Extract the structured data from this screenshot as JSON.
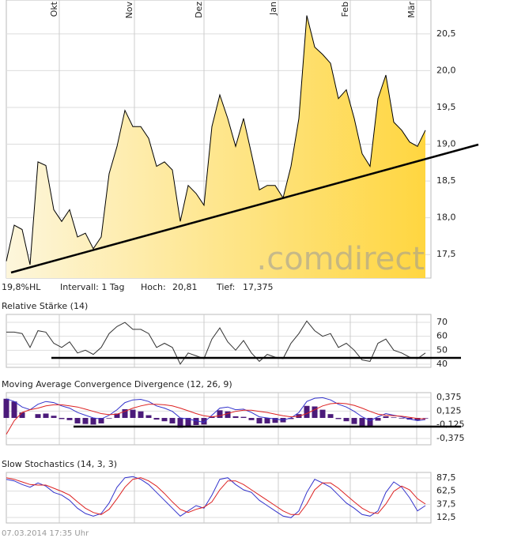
{
  "chart_data": [
    {
      "type": "area",
      "xlim": [
        0,
        53.7
      ],
      "ylim": [
        17.18,
        20.96
      ],
      "x": [
        0,
        1,
        2,
        3,
        4,
        5,
        6,
        7,
        8,
        9,
        10,
        11,
        12,
        13,
        14,
        15,
        16,
        17,
        18,
        19,
        20,
        21,
        22,
        23,
        24,
        25,
        26,
        27,
        28,
        29,
        30,
        31,
        32,
        33,
        34,
        35,
        36,
        37,
        38,
        39,
        40,
        41,
        42,
        43,
        44,
        45,
        46,
        47,
        48,
        49,
        50,
        51,
        52,
        53
      ],
      "xticks": [
        {
          "value": 6.7,
          "label": "Okt"
        },
        {
          "value": 16.2,
          "label": "Nov"
        },
        {
          "value": 25,
          "label": "Dez"
        },
        {
          "value": 34.4,
          "label": "Jan"
        },
        {
          "value": 43.5,
          "label": "Feb"
        },
        {
          "value": 51.9,
          "label": "Mär"
        }
      ],
      "yticks": [
        {
          "value": 17.5,
          "label": "17,5"
        },
        {
          "value": 18,
          "label": "18,0"
        },
        {
          "value": 18.5,
          "label": "18,5"
        },
        {
          "value": 19,
          "label": "19,0"
        },
        {
          "value": 19.5,
          "label": "19,5"
        },
        {
          "value": 20,
          "label": "20,0"
        },
        {
          "value": 20.5,
          "label": "20,5"
        }
      ],
      "grid": true,
      "watermark": ".comdirect",
      "series": [
        {
          "color": "#000000",
          "fill_from": "#fdf6dc",
          "fill_to": "#ffd640",
          "values": [
            17.41,
            17.9,
            17.84,
            17.36,
            18.76,
            18.71,
            18.11,
            17.95,
            18.11,
            17.74,
            17.79,
            17.58,
            17.74,
            18.6,
            18.97,
            19.46,
            19.24,
            19.24,
            19.08,
            18.7,
            18.76,
            18.65,
            17.95,
            18.44,
            18.33,
            18.17,
            19.24,
            19.67,
            19.35,
            18.97,
            19.35,
            18.87,
            18.38,
            18.44,
            18.44,
            18.27,
            18.7,
            19.35,
            20.75,
            20.32,
            20.22,
            20.1,
            19.62,
            19.74,
            19.35,
            18.87,
            18.7,
            19.62,
            19.94,
            19.3,
            19.19,
            19.03,
            18.97,
            19.19
          ]
        }
      ]
    },
    {
      "type": "line",
      "title": "Relative Stärke (14)",
      "xlim": [
        0,
        53.7
      ],
      "ylim": [
        37.7,
        75.7
      ],
      "yticks": [
        40,
        50,
        60,
        70
      ],
      "grid": true,
      "x": [
        0,
        1,
        2,
        3,
        4,
        5,
        6,
        7,
        8,
        9,
        10,
        11,
        12,
        13,
        14,
        15,
        16,
        17,
        18,
        19,
        20,
        21,
        22,
        23,
        24,
        25,
        26,
        27,
        28,
        29,
        30,
        31,
        32,
        33,
        34,
        35,
        36,
        37,
        38,
        39,
        40,
        41,
        42,
        43,
        44,
        45,
        46,
        47,
        48,
        49,
        50,
        51,
        52,
        53
      ],
      "series": [
        {
          "color": "#333333",
          "values": [
            63,
            63,
            62,
            52,
            64,
            63,
            55,
            52,
            56,
            48,
            50,
            47,
            52,
            62,
            67,
            70,
            65,
            65,
            62,
            52,
            55,
            52,
            40,
            48,
            46,
            44,
            58,
            66,
            56,
            50,
            57,
            48,
            42,
            47,
            45,
            44,
            55,
            62,
            71,
            64,
            60,
            62,
            52,
            55,
            50,
            43,
            42,
            55,
            58,
            50,
            48,
            45,
            44,
            48
          ]
        }
      ]
    },
    {
      "type": "combo",
      "title": "Moving Average Convergence Divergence (12, 26, 9)",
      "xlim": [
        0,
        53.7
      ],
      "ylim": [
        -0.49,
        0.462
      ],
      "yticks": [
        {
          "value": -0.375,
          "label": "-0,375"
        },
        {
          "value": -0.125,
          "label": "-0,125"
        },
        {
          "value": 0.125,
          "label": "0,125"
        },
        {
          "value": 0.375,
          "label": "0,375"
        }
      ],
      "grid": true,
      "x": [
        0,
        1,
        2,
        3,
        4,
        5,
        6,
        7,
        8,
        9,
        10,
        11,
        12,
        13,
        14,
        15,
        16,
        17,
        18,
        19,
        20,
        21,
        22,
        23,
        24,
        25,
        26,
        27,
        28,
        29,
        30,
        31,
        32,
        33,
        34,
        35,
        36,
        37,
        38,
        39,
        40,
        41,
        42,
        43,
        44,
        45,
        46,
        47,
        48,
        49,
        50,
        51,
        52,
        53
      ],
      "series": [
        {
          "type": "bar",
          "color": "#4b1a7a",
          "values": [
            0.35,
            0.3,
            0.1,
            0,
            0.07,
            0.08,
            0.04,
            -0.02,
            -0.04,
            -0.1,
            -0.11,
            -0.12,
            -0.1,
            -0.01,
            0.08,
            0.16,
            0.15,
            0.12,
            0.05,
            -0.03,
            -0.06,
            -0.1,
            -0.18,
            -0.15,
            -0.13,
            -0.12,
            0.03,
            0.14,
            0.12,
            0.03,
            0.02,
            -0.04,
            -0.1,
            -0.1,
            -0.09,
            -0.08,
            -0.02,
            0.07,
            0.22,
            0.21,
            0.15,
            0.07,
            -0.02,
            -0.06,
            -0.11,
            -0.16,
            -0.17,
            -0.05,
            0.03,
            0.01,
            -0.01,
            -0.03,
            -0.04,
            -0.01
          ]
        },
        {
          "type": "line",
          "color": "#3333cc",
          "values": [
            0.35,
            0.3,
            0.2,
            0.15,
            0.25,
            0.3,
            0.28,
            0.22,
            0.18,
            0.1,
            0.05,
            0,
            -0.02,
            0.05,
            0.15,
            0.28,
            0.33,
            0.34,
            0.3,
            0.22,
            0.18,
            0.12,
            0,
            -0.02,
            -0.05,
            -0.08,
            0.05,
            0.18,
            0.2,
            0.15,
            0.16,
            0.1,
            0.02,
            0,
            -0.02,
            -0.04,
            0,
            0.1,
            0.3,
            0.36,
            0.37,
            0.33,
            0.25,
            0.2,
            0.12,
            0.02,
            -0.05,
            0.02,
            0.08,
            0.05,
            0.02,
            -0.02,
            -0.05,
            -0.03
          ]
        },
        {
          "type": "line",
          "color": "#dd2222",
          "values": [
            -0.3,
            -0.05,
            0.1,
            0.15,
            0.18,
            0.22,
            0.24,
            0.24,
            0.22,
            0.2,
            0.16,
            0.12,
            0.08,
            0.06,
            0.07,
            0.12,
            0.18,
            0.22,
            0.25,
            0.25,
            0.24,
            0.22,
            0.18,
            0.13,
            0.08,
            0.04,
            0.02,
            0.04,
            0.08,
            0.12,
            0.14,
            0.14,
            0.12,
            0.1,
            0.07,
            0.04,
            0.02,
            0.03,
            0.08,
            0.15,
            0.22,
            0.26,
            0.27,
            0.26,
            0.23,
            0.18,
            0.12,
            0.07,
            0.05,
            0.04,
            0.03,
            0.01,
            -0.01,
            -0.02
          ]
        }
      ]
    },
    {
      "type": "line",
      "title": "Slow Stochastics (14, 3, 3)",
      "xlim": [
        0,
        53.7
      ],
      "ylim": [
        2,
        98
      ],
      "yticks": [
        {
          "value": 12.5,
          "label": "12,5"
        },
        {
          "value": 37.5,
          "label": "37,5"
        },
        {
          "value": 62.5,
          "label": "62,5"
        },
        {
          "value": 87.5,
          "label": "87,5"
        }
      ],
      "grid": true,
      "x": [
        0,
        1,
        2,
        3,
        4,
        5,
        6,
        7,
        8,
        9,
        10,
        11,
        12,
        13,
        14,
        15,
        16,
        17,
        18,
        19,
        20,
        21,
        22,
        23,
        24,
        25,
        26,
        27,
        28,
        29,
        30,
        31,
        32,
        33,
        34,
        35,
        36,
        37,
        38,
        39,
        40,
        41,
        42,
        43,
        44,
        45,
        46,
        47,
        48,
        49,
        50,
        51,
        52,
        53
      ],
      "series": [
        {
          "color": "#3333cc",
          "values": [
            85,
            82,
            75,
            70,
            78,
            72,
            60,
            55,
            45,
            30,
            20,
            15,
            20,
            40,
            70,
            88,
            90,
            85,
            75,
            60,
            45,
            30,
            15,
            25,
            35,
            30,
            55,
            85,
            88,
            75,
            65,
            60,
            45,
            35,
            25,
            15,
            12,
            25,
            60,
            85,
            78,
            70,
            55,
            40,
            30,
            18,
            15,
            25,
            60,
            80,
            70,
            50,
            25,
            35
          ]
        },
        {
          "color": "#dd2222",
          "values": [
            88,
            85,
            80,
            75,
            74,
            74,
            68,
            62,
            55,
            42,
            30,
            22,
            18,
            28,
            48,
            70,
            85,
            88,
            82,
            72,
            58,
            42,
            28,
            22,
            28,
            32,
            42,
            65,
            82,
            82,
            75,
            65,
            55,
            45,
            35,
            25,
            18,
            18,
            38,
            65,
            78,
            78,
            68,
            55,
            42,
            30,
            22,
            20,
            38,
            62,
            72,
            65,
            48,
            38
          ]
        }
      ]
    }
  ],
  "info": {
    "range": "19,8%HL",
    "interval": "Intervall: 1 Tag",
    "high_label": "Hoch:",
    "high": "20,81",
    "low_label": "Tief:",
    "low": "17,375"
  },
  "footer": "07.03.2014 17:35 Uhr"
}
